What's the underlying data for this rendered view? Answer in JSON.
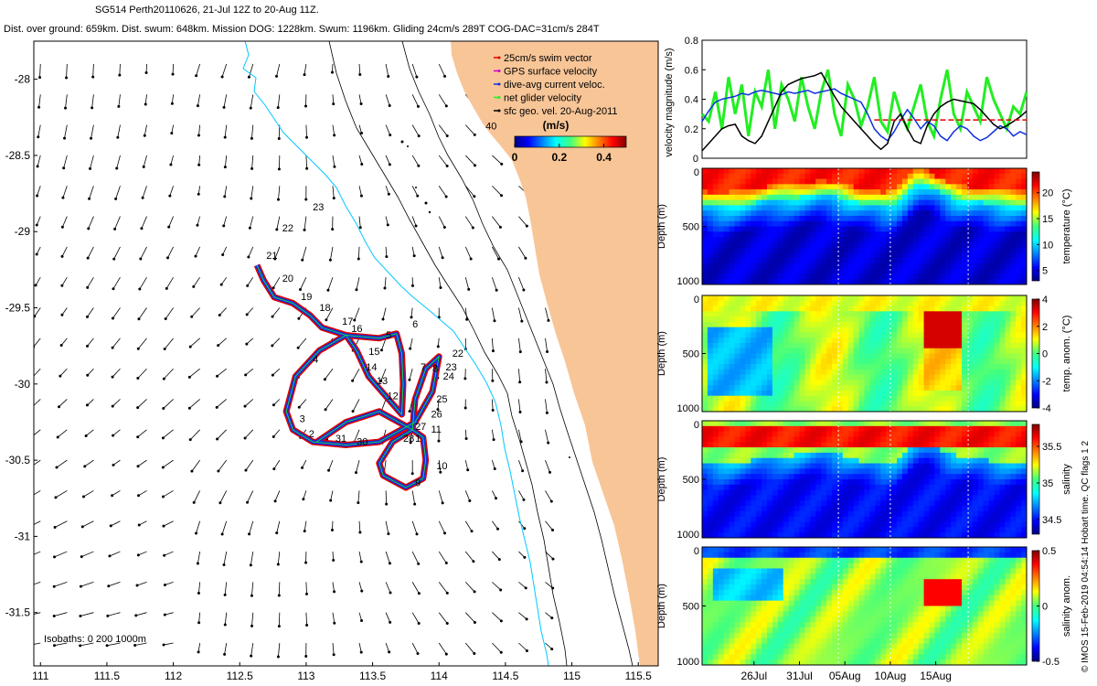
{
  "header": {
    "line1": "SG514 Perth20110626, 21-Jul 12Z to 20-Aug 11Z.",
    "line2": "Dist. over ground: 659km. Dist. swum: 648km. Mission DOG: 1228km. Swum: 1196km. Gliding 24cm/s 289T COG-DAC=31cm/s 284T"
  },
  "credit": "© IMOS 15-Feb-2019 04:54:14 Hobart time. QC flags 1  2",
  "colors": {
    "land": "#f8c597",
    "coast_isobath": "#00c8ff",
    "track_red": "#e00000",
    "track_blue": "#1030e0",
    "net_green": "#22ee22"
  },
  "chart_data": [
    {
      "type": "map",
      "name": "glider-track-map",
      "xlim": [
        110.95,
        115.65
      ],
      "ylim": [
        -31.85,
        -27.75
      ],
      "xticks": [
        111,
        111.5,
        112,
        112.5,
        113,
        113.5,
        114,
        114.5,
        115,
        115.5
      ],
      "yticks": [
        -28,
        -28.5,
        -29,
        -29.5,
        -30,
        -30.5,
        -31,
        -31.5
      ],
      "legend": {
        "placement": "top-right",
        "entries": [
          "25cm/s swim vector",
          "GPS surface velocity",
          "dive-avg current veloc.",
          "net glider velocity",
          "sfc geo. vel. 20-Aug-2011"
        ],
        "units": "(m/s)",
        "colorbar_ticks": [
          "0",
          "0.2",
          "0.4"
        ],
        "colorbar_range": [
          0,
          0.5
        ]
      },
      "isobaths_label": "Isobaths: 0   200  1000m",
      "track": [
        [
          112.63,
          -29.22
        ],
        [
          112.68,
          -29.32
        ],
        [
          112.76,
          -29.43
        ],
        [
          112.9,
          -29.47
        ],
        [
          113.03,
          -29.55
        ],
        [
          113.12,
          -29.63
        ],
        [
          113.3,
          -29.68
        ],
        [
          113.55,
          -29.7
        ],
        [
          113.68,
          -29.67
        ],
        [
          113.72,
          -29.8
        ],
        [
          113.73,
          -30.0
        ],
        [
          113.72,
          -30.2
        ],
        [
          113.62,
          -30.1
        ],
        [
          113.47,
          -29.95
        ],
        [
          113.38,
          -29.78
        ],
        [
          113.3,
          -29.68
        ],
        [
          113.1,
          -29.78
        ],
        [
          112.92,
          -29.95
        ],
        [
          112.85,
          -30.18
        ],
        [
          112.9,
          -30.3
        ],
        [
          113.05,
          -30.38
        ],
        [
          113.3,
          -30.4
        ],
        [
          113.55,
          -30.38
        ],
        [
          113.82,
          -30.25
        ],
        [
          113.95,
          -30.05
        ],
        [
          114.0,
          -29.82
        ],
        [
          113.9,
          -29.9
        ],
        [
          113.82,
          -30.1
        ],
        [
          113.8,
          -30.3
        ],
        [
          113.65,
          -30.38
        ],
        [
          113.55,
          -30.52
        ],
        [
          113.58,
          -30.6
        ],
        [
          113.75,
          -30.68
        ],
        [
          113.88,
          -30.62
        ],
        [
          113.9,
          -30.5
        ],
        [
          113.88,
          -30.35
        ],
        [
          113.8,
          -30.3
        ],
        [
          113.55,
          -30.18
        ],
        [
          113.3,
          -30.25
        ],
        [
          113.08,
          -30.38
        ]
      ],
      "track_labels": [
        {
          "t": "21",
          "lon": 112.7,
          "lat": -29.18
        },
        {
          "t": "20",
          "lon": 112.82,
          "lat": -29.33
        },
        {
          "t": "19",
          "lon": 112.96,
          "lat": -29.45
        },
        {
          "t": "18",
          "lon": 113.1,
          "lat": -29.52
        },
        {
          "t": "17",
          "lon": 113.27,
          "lat": -29.61
        },
        {
          "t": "16",
          "lon": 113.34,
          "lat": -29.66
        },
        {
          "t": "15",
          "lon": 113.47,
          "lat": -29.81
        },
        {
          "t": "14",
          "lon": 113.45,
          "lat": -29.91
        },
        {
          "t": "13",
          "lon": 113.53,
          "lat": -30.0
        },
        {
          "t": "12",
          "lon": 113.61,
          "lat": -30.1
        },
        {
          "t": "6",
          "lon": 113.8,
          "lat": -29.63
        },
        {
          "t": "5",
          "lon": 113.6,
          "lat": -29.7
        },
        {
          "t": "4",
          "lon": 113.05,
          "lat": -29.86
        },
        {
          "t": "7",
          "lon": 113.86,
          "lat": -29.91
        },
        {
          "t": "8",
          "lon": 113.95,
          "lat": -29.92
        },
        {
          "t": "22",
          "lon": 114.1,
          "lat": -29.82
        },
        {
          "t": "23",
          "lon": 114.05,
          "lat": -29.91
        },
        {
          "t": "24",
          "lon": 114.03,
          "lat": -29.97
        },
        {
          "t": "25",
          "lon": 113.98,
          "lat": -30.12
        },
        {
          "t": "26",
          "lon": 113.94,
          "lat": -30.22
        },
        {
          "t": "27",
          "lon": 113.82,
          "lat": -30.3
        },
        {
          "t": "11",
          "lon": 113.94,
          "lat": -30.32
        },
        {
          "t": "28",
          "lon": 113.73,
          "lat": -30.38
        },
        {
          "t": "1",
          "lon": 113.82,
          "lat": -30.38
        },
        {
          "t": "10",
          "lon": 113.98,
          "lat": -30.56
        },
        {
          "t": "9",
          "lon": 113.82,
          "lat": -30.67
        },
        {
          "t": "3",
          "lon": 112.95,
          "lat": -30.25
        },
        {
          "t": "2",
          "lon": 113.02,
          "lat": -30.35
        },
        {
          "t": "31",
          "lon": 113.22,
          "lat": -30.38
        },
        {
          "t": "30",
          "lon": 113.38,
          "lat": -30.4
        },
        {
          "t": "22",
          "lon": 112.82,
          "lat": -29.0
        },
        {
          "t": "23",
          "lon": 113.05,
          "lat": -28.86
        },
        {
          "t": "40",
          "lon": 114.35,
          "lat": -28.33
        }
      ]
    },
    {
      "type": "line",
      "name": "velocity-magnitude",
      "ylabel": "velocity magnitude (m/s)",
      "ylim": [
        0,
        0.8
      ],
      "yticks": [
        0,
        0.2,
        0.4,
        0.6,
        0.8
      ],
      "x_start": "21-Jul",
      "x_end": "20-Aug",
      "series": [
        {
          "color": "#22ee22",
          "values": [
            0.3,
            0.25,
            0.45,
            0.2,
            0.55,
            0.3,
            0.5,
            0.15,
            0.45,
            0.35,
            0.6,
            0.2,
            0.5,
            0.4,
            0.25,
            0.55,
            0.35,
            0.2,
            0.45,
            0.6,
            0.3,
            0.15,
            0.5,
            0.4,
            0.22,
            0.35,
            0.55,
            0.25,
            0.18,
            0.45,
            0.3,
            0.2,
            0.35,
            0.5,
            0.25,
            0.15,
            0.4,
            0.6,
            0.3,
            0.2,
            0.45,
            0.35,
            0.25,
            0.55,
            0.4,
            0.3,
            0.2,
            0.35,
            0.3,
            0.45
          ]
        },
        {
          "color": "#1030e0",
          "values": [
            0.25,
            0.32,
            0.38,
            0.4,
            0.41,
            0.42,
            0.44,
            0.43,
            0.45,
            0.46,
            0.45,
            0.44,
            0.43,
            0.45,
            0.44,
            0.45,
            0.46,
            0.44,
            0.45,
            0.46,
            0.47,
            0.44,
            0.42,
            0.4,
            0.38,
            0.3,
            0.2,
            0.15,
            0.12,
            0.18,
            0.26,
            0.33,
            0.27,
            0.2,
            0.25,
            0.22,
            0.15,
            0.12,
            0.18,
            0.22,
            0.2,
            0.15,
            0.12,
            0.14,
            0.18,
            0.22,
            0.2,
            0.15,
            0.18,
            0.16
          ]
        },
        {
          "color": "#000000",
          "values": [
            0.05,
            0.1,
            0.15,
            0.2,
            0.22,
            0.23,
            0.15,
            0.12,
            0.1,
            0.15,
            0.25,
            0.35,
            0.45,
            0.5,
            0.52,
            0.54,
            0.55,
            0.56,
            0.58,
            0.5,
            0.42,
            0.35,
            0.3,
            0.25,
            0.2,
            0.15,
            0.1,
            0.06,
            0.1,
            0.25,
            0.3,
            0.2,
            0.12,
            0.1,
            0.22,
            0.3,
            0.35,
            0.38,
            0.4,
            0.39,
            0.38,
            0.37,
            0.33,
            0.28,
            0.23,
            0.2,
            0.22,
            0.25,
            0.28,
            0.32
          ]
        },
        {
          "color": "#e00000",
          "values": [
            null,
            null,
            null,
            null,
            null,
            null,
            null,
            null,
            null,
            null,
            null,
            null,
            null,
            null,
            null,
            null,
            null,
            null,
            null,
            null,
            null,
            null,
            null,
            null,
            null,
            null,
            0.26,
            0.26,
            0.26,
            0.26,
            0.26,
            0.26,
            0.26,
            0.26,
            0.26,
            0.26,
            0.26,
            0.26,
            0.26,
            0.26,
            0.26,
            0.26,
            0.26,
            0.26,
            0.26,
            0.26,
            0.26,
            0.26,
            0.26,
            0.26
          ]
        }
      ]
    },
    {
      "type": "heatmap",
      "name": "temperature-section",
      "ylabel": "Depth (m)",
      "yticks": [
        0,
        500,
        1000
      ],
      "colorbar_label": "temperature (°C)",
      "colorbar_ticks": [
        5,
        10,
        15,
        20
      ],
      "range": [
        3,
        24
      ],
      "thermocline_depth": [
        260,
        270,
        280,
        270,
        260,
        250,
        240,
        230,
        220,
        210,
        200,
        195,
        190,
        180,
        170,
        175,
        185,
        200,
        220,
        240,
        250,
        260,
        270,
        250,
        200,
        120,
        60,
        80,
        120,
        160,
        190,
        210,
        220,
        230,
        240,
        245,
        250,
        250,
        255,
        260
      ]
    },
    {
      "type": "heatmap",
      "name": "temperature-anomaly-section",
      "ylabel": "Depth (m)",
      "yticks": [
        0,
        500,
        1000
      ],
      "colorbar_label": "temp. anom. (°C)",
      "colorbar_ticks": [
        -4,
        -2,
        0,
        2,
        4
      ],
      "range": [
        -4,
        4
      ]
    },
    {
      "type": "heatmap",
      "name": "salinity-section",
      "ylabel": "Depth (m)",
      "yticks": [
        0,
        500,
        1000
      ],
      "colorbar_label": "salinity",
      "colorbar_ticks": [
        34.5,
        35,
        35.5
      ],
      "range": [
        34.3,
        35.8
      ]
    },
    {
      "type": "heatmap",
      "name": "salinity-anomaly-section",
      "ylabel": "Depth (m)",
      "yticks": [
        0,
        500,
        1000
      ],
      "colorbar_label": "salinity anom.",
      "colorbar_ticks": [
        -0.5,
        0,
        0.5
      ],
      "range": [
        -0.5,
        0.5
      ],
      "xtick_labels": [
        "26Jul",
        "31Jul",
        "05Aug",
        "10Aug",
        "15Aug"
      ]
    }
  ]
}
